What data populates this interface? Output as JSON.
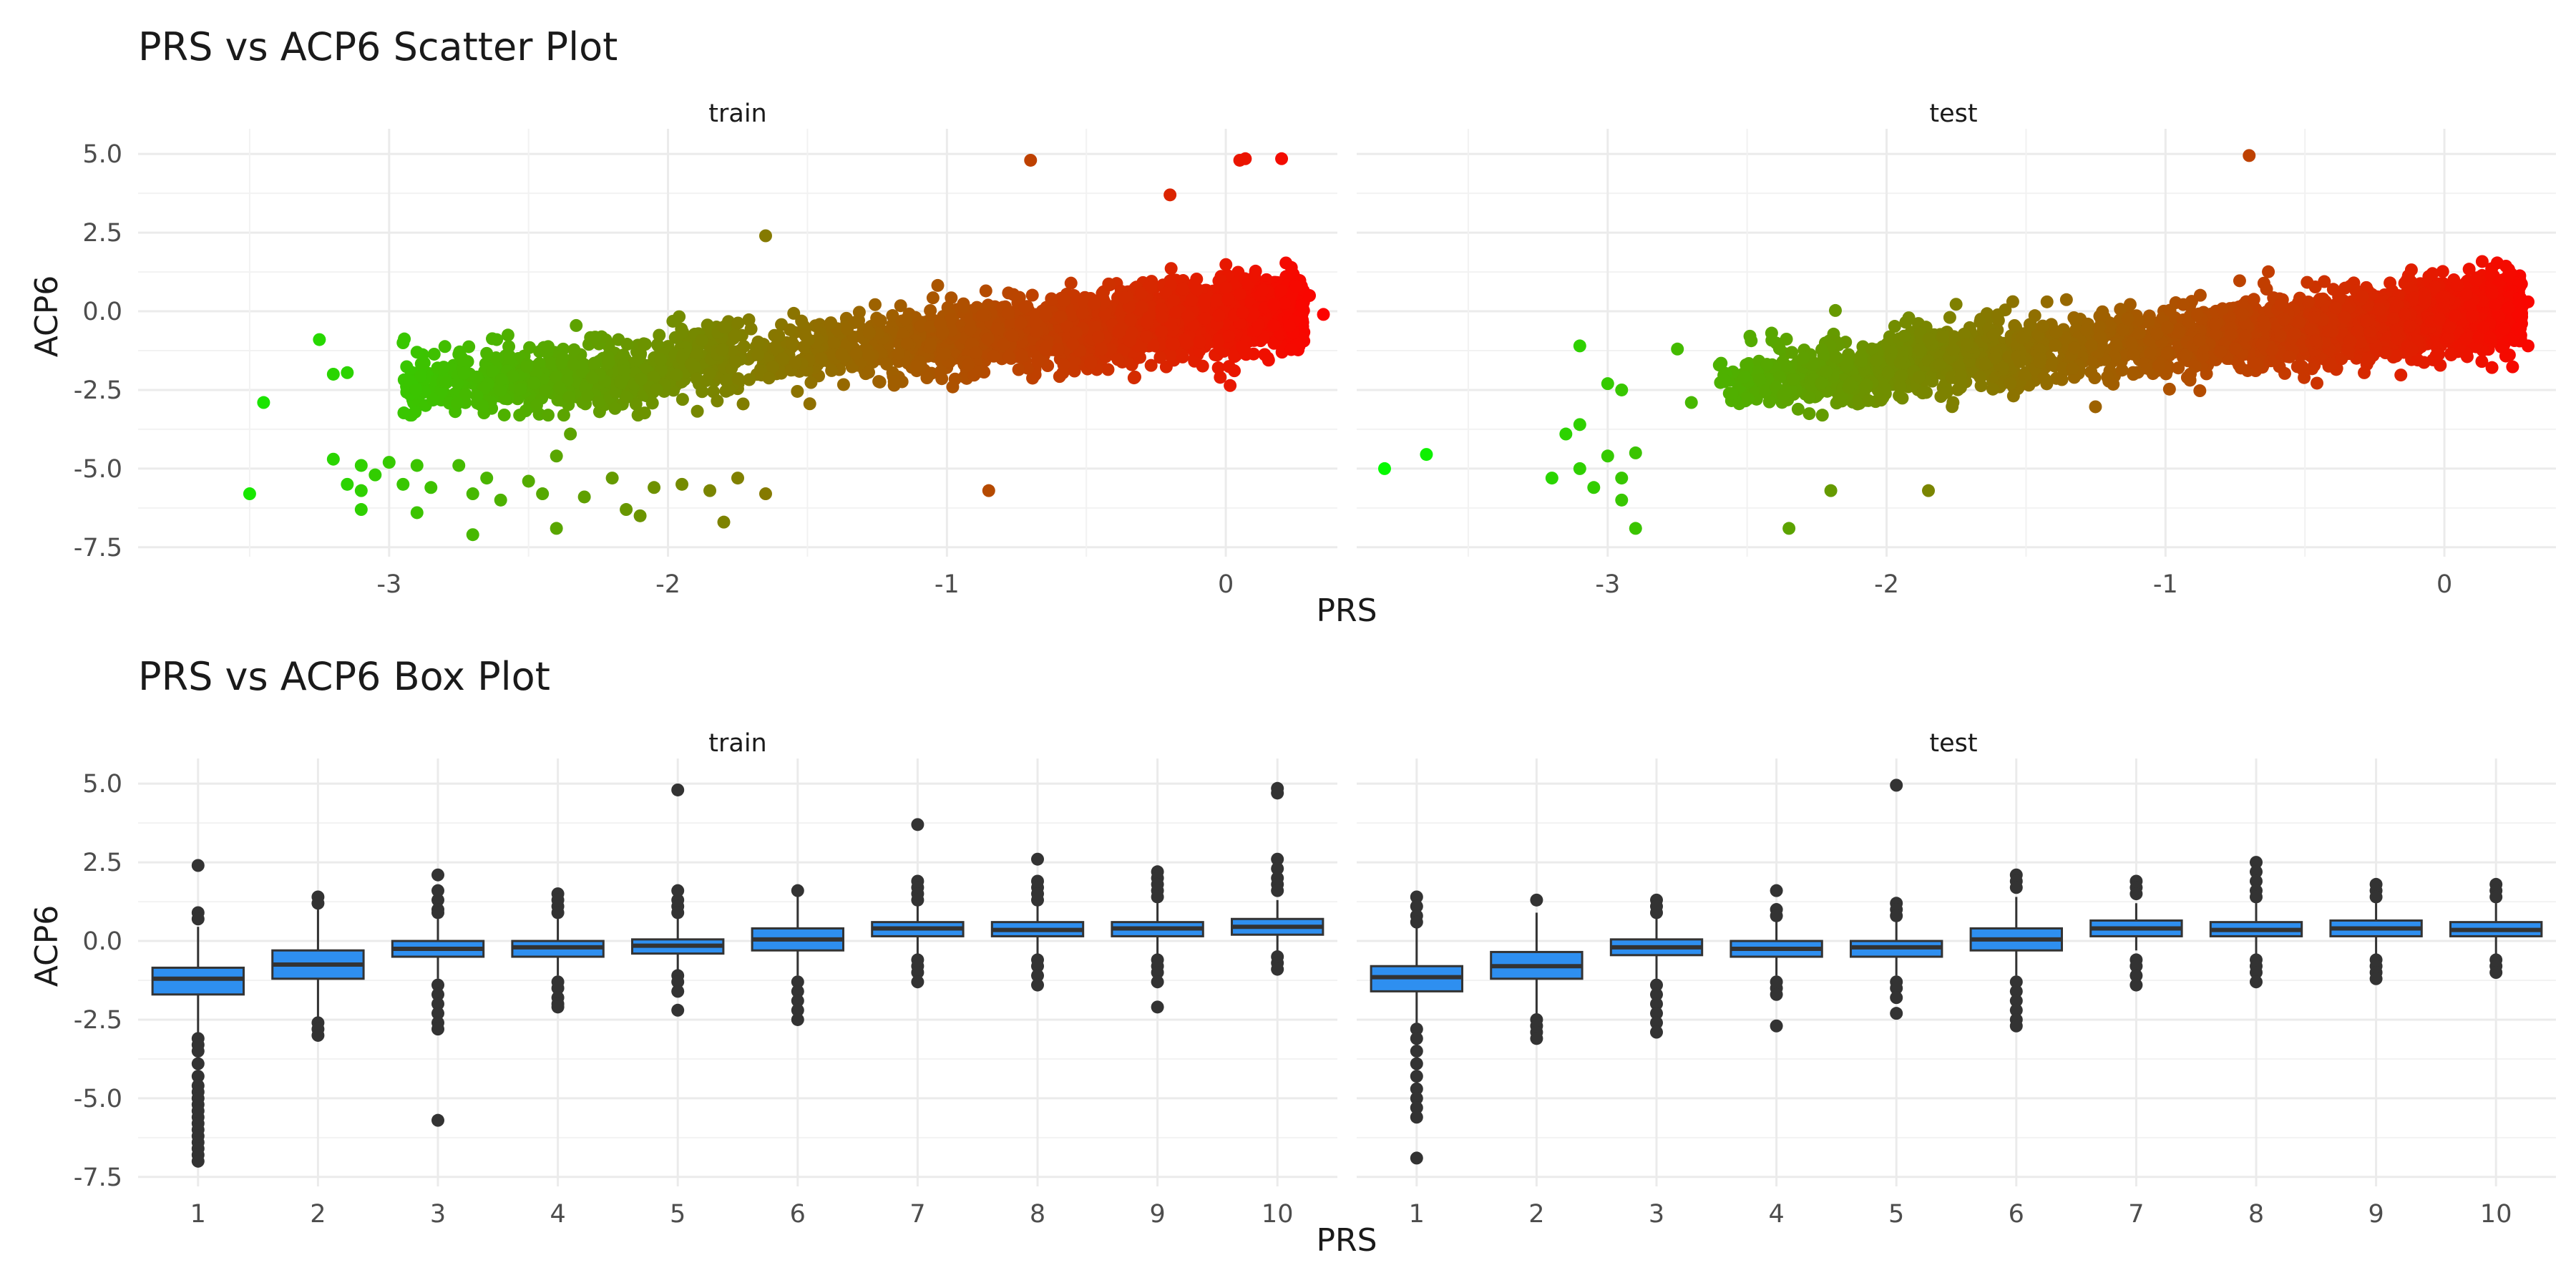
{
  "figure": {
    "x_axis_label": "PRS",
    "y_axis_label": "ACP6"
  },
  "chart_data": [
    {
      "type": "scatter",
      "title": "PRS vs ACP6 Scatter Plot",
      "xlabel": "PRS",
      "ylabel": "ACP6",
      "xlim": [
        -3.9,
        0.4
      ],
      "ylim": [
        -7.8,
        5.8
      ],
      "x_ticks": [
        -3,
        -2,
        -1,
        0
      ],
      "y_ticks": [
        5.0,
        2.5,
        0.0,
        -2.5,
        -5.0,
        -7.5
      ],
      "y_tick_labels": [
        "5.0",
        "2.5",
        "0.0",
        "-2.5",
        "-5.0",
        "-7.5"
      ],
      "color_scale": {
        "low": "#00ff00",
        "high": "#ff0000",
        "variable": "PRS"
      },
      "grid": true,
      "panels": [
        {
          "name": "train",
          "trend": {
            "slope": 0.75,
            "intercept": -0.15,
            "noise_sd": 0.55
          },
          "bulk_x_range": [
            -2.95,
            0.28
          ],
          "points": [
            {
              "x": 0.05,
              "y": 4.8
            },
            {
              "x": 0.07,
              "y": 4.85
            },
            {
              "x": 0.2,
              "y": 4.85
            },
            {
              "x": -0.7,
              "y": 4.8
            },
            {
              "x": -0.2,
              "y": 3.7
            },
            {
              "x": -1.65,
              "y": 2.4
            },
            {
              "x": 0.3,
              "y": 0.5
            },
            {
              "x": 0.35,
              "y": -0.1
            },
            {
              "x": -0.02,
              "y": -2.1
            },
            {
              "x": -0.85,
              "y": -5.7
            },
            {
              "x": -3.5,
              "y": -5.8
            },
            {
              "x": -3.45,
              "y": -2.9
            },
            {
              "x": -3.25,
              "y": -0.9
            },
            {
              "x": -3.2,
              "y": -2.0
            },
            {
              "x": -3.15,
              "y": -1.95
            },
            {
              "x": -3.2,
              "y": -4.7
            },
            {
              "x": -3.15,
              "y": -5.5
            },
            {
              "x": -3.1,
              "y": -4.9
            },
            {
              "x": -3.1,
              "y": -5.7
            },
            {
              "x": -3.05,
              "y": -5.2
            },
            {
              "x": -3.1,
              "y": -6.3
            },
            {
              "x": -3.0,
              "y": -4.8
            },
            {
              "x": -2.95,
              "y": -5.5
            },
            {
              "x": -2.9,
              "y": -4.9
            },
            {
              "x": -2.85,
              "y": -5.6
            },
            {
              "x": -2.75,
              "y": -4.9
            },
            {
              "x": -2.7,
              "y": -5.8
            },
            {
              "x": -2.65,
              "y": -5.3
            },
            {
              "x": -2.6,
              "y": -6.0
            },
            {
              "x": -2.7,
              "y": -7.1
            },
            {
              "x": -2.9,
              "y": -6.4
            },
            {
              "x": -2.5,
              "y": -5.4
            },
            {
              "x": -2.45,
              "y": -5.8
            },
            {
              "x": -2.4,
              "y": -4.6
            },
            {
              "x": -2.35,
              "y": -3.9
            },
            {
              "x": -2.3,
              "y": -5.9
            },
            {
              "x": -2.2,
              "y": -5.3
            },
            {
              "x": -2.15,
              "y": -6.3
            },
            {
              "x": -2.05,
              "y": -5.6
            },
            {
              "x": -1.95,
              "y": -5.5
            },
            {
              "x": -1.85,
              "y": -5.7
            },
            {
              "x": -1.75,
              "y": -5.3
            },
            {
              "x": -1.65,
              "y": -5.8
            },
            {
              "x": -2.4,
              "y": -6.9
            },
            {
              "x": -2.1,
              "y": -6.5
            },
            {
              "x": -1.8,
              "y": -6.7
            },
            {
              "x": -2.95,
              "y": -1.0
            },
            {
              "x": -2.9,
              "y": -1.3
            }
          ]
        },
        {
          "name": "test",
          "trend": {
            "slope": 0.75,
            "intercept": -0.15,
            "noise_sd": 0.55
          },
          "bulk_x_range": [
            -2.6,
            0.28
          ],
          "points": [
            {
              "x": -0.7,
              "y": 4.95
            },
            {
              "x": -3.8,
              "y": -5.0
            },
            {
              "x": -3.65,
              "y": -4.55
            },
            {
              "x": -3.1,
              "y": -1.1
            },
            {
              "x": -3.1,
              "y": -3.6
            },
            {
              "x": -3.15,
              "y": -3.9
            },
            {
              "x": -3.0,
              "y": -2.3
            },
            {
              "x": -2.95,
              "y": -2.5
            },
            {
              "x": -3.0,
              "y": -4.6
            },
            {
              "x": -3.1,
              "y": -5.0
            },
            {
              "x": -3.2,
              "y": -5.3
            },
            {
              "x": -3.05,
              "y": -5.6
            },
            {
              "x": -2.95,
              "y": -5.3
            },
            {
              "x": -2.9,
              "y": -4.5
            },
            {
              "x": -2.95,
              "y": -6.0
            },
            {
              "x": -2.9,
              "y": -6.9
            },
            {
              "x": -2.35,
              "y": -6.9
            },
            {
              "x": -2.2,
              "y": -5.7
            },
            {
              "x": -1.85,
              "y": -5.7
            },
            {
              "x": 0.3,
              "y": -1.1
            },
            {
              "x": 0.3,
              "y": 0.3
            },
            {
              "x": -2.75,
              "y": -1.2
            },
            {
              "x": -2.7,
              "y": -2.9
            }
          ]
        }
      ]
    },
    {
      "type": "box",
      "title": "PRS vs ACP6 Box Plot",
      "xlabel": "PRS",
      "ylabel": "ACP6",
      "categories": [
        "1",
        "2",
        "3",
        "4",
        "5",
        "6",
        "7",
        "8",
        "9",
        "10"
      ],
      "ylim": [
        -7.8,
        5.8
      ],
      "y_ticks": [
        5.0,
        2.5,
        0.0,
        -2.5,
        -5.0,
        -7.5
      ],
      "y_tick_labels": [
        "5.0",
        "2.5",
        "0.0",
        "-2.5",
        "-5.0",
        "-7.5"
      ],
      "box_color": "#2e8ff0",
      "grid": true,
      "panels": [
        {
          "name": "train",
          "boxes": [
            {
              "q1": -1.7,
              "median": -1.2,
              "q3": -0.85,
              "lower": -2.9,
              "upper": 0.45,
              "outliers": [
                2.4,
                0.9,
                0.7,
                -3.1,
                -3.3,
                -3.5,
                -3.9,
                -4.3,
                -4.6,
                -4.8,
                -5.0,
                -5.2,
                -5.4,
                -5.6,
                -5.8,
                -6.0,
                -6.2,
                -6.4,
                -6.6,
                -6.8,
                -7.0
              ]
            },
            {
              "q1": -1.2,
              "median": -0.75,
              "q3": -0.3,
              "lower": -2.4,
              "upper": 1.0,
              "outliers": [
                1.4,
                1.2,
                -2.6,
                -2.8,
                -3.0
              ]
            },
            {
              "q1": -0.5,
              "median": -0.25,
              "q3": 0.0,
              "lower": -1.2,
              "upper": 0.7,
              "outliers": [
                2.1,
                1.6,
                1.3,
                1.0,
                0.9,
                -1.4,
                -1.7,
                -2.0,
                -2.3,
                -2.6,
                -2.8,
                -5.7
              ]
            },
            {
              "q1": -0.5,
              "median": -0.2,
              "q3": 0.0,
              "lower": -1.1,
              "upper": 0.7,
              "outliers": [
                1.5,
                1.3,
                1.1,
                0.9,
                -1.3,
                -1.5,
                -1.8,
                -2.0,
                -2.1
              ]
            },
            {
              "q1": -0.4,
              "median": -0.15,
              "q3": 0.05,
              "lower": -1.0,
              "upper": 0.75,
              "outliers": [
                4.8,
                1.6,
                1.3,
                1.1,
                0.9,
                -1.1,
                -1.3,
                -1.6,
                -2.2
              ]
            },
            {
              "q1": -0.3,
              "median": 0.05,
              "q3": 0.4,
              "lower": -1.1,
              "upper": 1.4,
              "outliers": [
                1.6,
                -1.3,
                -1.6,
                -1.9,
                -2.2,
                -2.5
              ]
            },
            {
              "q1": 0.15,
              "median": 0.4,
              "q3": 0.6,
              "lower": -0.4,
              "upper": 1.2,
              "outliers": [
                3.7,
                1.9,
                1.7,
                1.5,
                1.3,
                -0.6,
                -0.8,
                -1.0,
                -1.3
              ]
            },
            {
              "q1": 0.15,
              "median": 0.35,
              "q3": 0.6,
              "lower": -0.4,
              "upper": 1.2,
              "outliers": [
                2.6,
                1.9,
                1.7,
                1.5,
                1.3,
                -0.6,
                -0.8,
                -1.1,
                -1.4
              ]
            },
            {
              "q1": 0.15,
              "median": 0.4,
              "q3": 0.6,
              "lower": -0.4,
              "upper": 1.2,
              "outliers": [
                2.2,
                2.0,
                1.8,
                1.6,
                1.4,
                -0.6,
                -0.8,
                -1.0,
                -1.3,
                -2.1
              ]
            },
            {
              "q1": 0.2,
              "median": 0.45,
              "q3": 0.7,
              "lower": -0.3,
              "upper": 1.3,
              "outliers": [
                4.85,
                4.7,
                2.6,
                2.3,
                2.0,
                1.8,
                1.6,
                -0.5,
                -0.7,
                -0.9
              ]
            }
          ]
        },
        {
          "name": "test",
          "boxes": [
            {
              "q1": -1.6,
              "median": -1.15,
              "q3": -0.8,
              "lower": -2.6,
              "upper": 0.4,
              "outliers": [
                1.4,
                1.1,
                0.8,
                0.6,
                -2.8,
                -3.1,
                -3.5,
                -3.9,
                -4.3,
                -4.7,
                -5.0,
                -5.3,
                -5.6,
                -6.9
              ]
            },
            {
              "q1": -1.2,
              "median": -0.8,
              "q3": -0.35,
              "lower": -2.4,
              "upper": 0.9,
              "outliers": [
                1.3,
                -2.5,
                -2.7,
                -2.9,
                -3.1
              ]
            },
            {
              "q1": -0.45,
              "median": -0.2,
              "q3": 0.05,
              "lower": -1.2,
              "upper": 0.8,
              "outliers": [
                1.3,
                1.1,
                0.9,
                -1.4,
                -1.7,
                -2.0,
                -2.3,
                -2.6,
                -2.9
              ]
            },
            {
              "q1": -0.5,
              "median": -0.25,
              "q3": 0.0,
              "lower": -1.1,
              "upper": 0.7,
              "outliers": [
                1.6,
                1.0,
                0.8,
                -1.3,
                -1.5,
                -1.7,
                -2.7
              ]
            },
            {
              "q1": -0.5,
              "median": -0.2,
              "q3": 0.0,
              "lower": -1.1,
              "upper": 0.7,
              "outliers": [
                4.95,
                1.2,
                1.0,
                0.8,
                -1.3,
                -1.5,
                -1.8,
                -2.3
              ]
            },
            {
              "q1": -0.3,
              "median": 0.05,
              "q3": 0.4,
              "lower": -1.1,
              "upper": 1.4,
              "outliers": [
                2.1,
                1.9,
                1.7,
                -1.3,
                -1.6,
                -1.9,
                -2.2,
                -2.5,
                -2.7
              ]
            },
            {
              "q1": 0.15,
              "median": 0.4,
              "q3": 0.65,
              "lower": -0.3,
              "upper": 1.2,
              "outliers": [
                1.9,
                1.7,
                1.5,
                -0.6,
                -0.8,
                -1.1,
                -1.4
              ]
            },
            {
              "q1": 0.15,
              "median": 0.35,
              "q3": 0.6,
              "lower": -0.4,
              "upper": 1.2,
              "outliers": [
                2.5,
                2.2,
                1.9,
                1.6,
                1.4,
                -0.6,
                -0.8,
                -1.0,
                -1.3
              ]
            },
            {
              "q1": 0.15,
              "median": 0.4,
              "q3": 0.65,
              "lower": -0.4,
              "upper": 1.2,
              "outliers": [
                1.8,
                1.6,
                1.4,
                -0.6,
                -0.8,
                -1.0,
                -1.2
              ]
            },
            {
              "q1": 0.15,
              "median": 0.35,
              "q3": 0.6,
              "lower": -0.4,
              "upper": 1.2,
              "outliers": [
                1.8,
                1.6,
                1.4,
                -0.6,
                -0.8,
                -1.0
              ]
            }
          ]
        }
      ]
    }
  ]
}
